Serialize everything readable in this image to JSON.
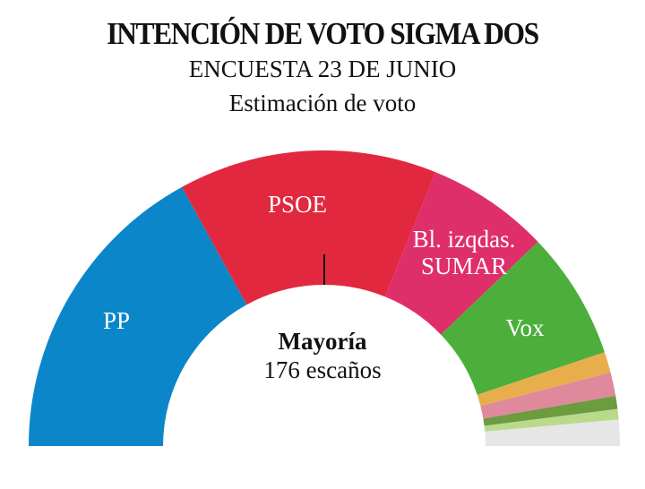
{
  "chart_data": {
    "type": "half-donut",
    "title": "INTENCIÓN DE VOTO SIGMA DOS",
    "subtitle": "ENCUESTA  23 DE JUNIO",
    "subtitle2": "Estimación de voto",
    "categories": [
      "PP",
      "PSOE",
      "Bl. izqdas.\nSUMAR",
      "Vox",
      null,
      null,
      null,
      null,
      null
    ],
    "values": [
      119,
      99,
      47,
      49,
      8,
      9,
      5,
      4,
      10
    ],
    "colors": [
      "#0b87c9",
      "#e2283f",
      "#df2f6a",
      "#4caf3b",
      "#e8ae4c",
      "#e0899c",
      "#6c9b40",
      "#b9d98b",
      "#e6e6e6"
    ],
    "annotation_title": "Mayoría",
    "annotation_text": "176 escaños"
  }
}
